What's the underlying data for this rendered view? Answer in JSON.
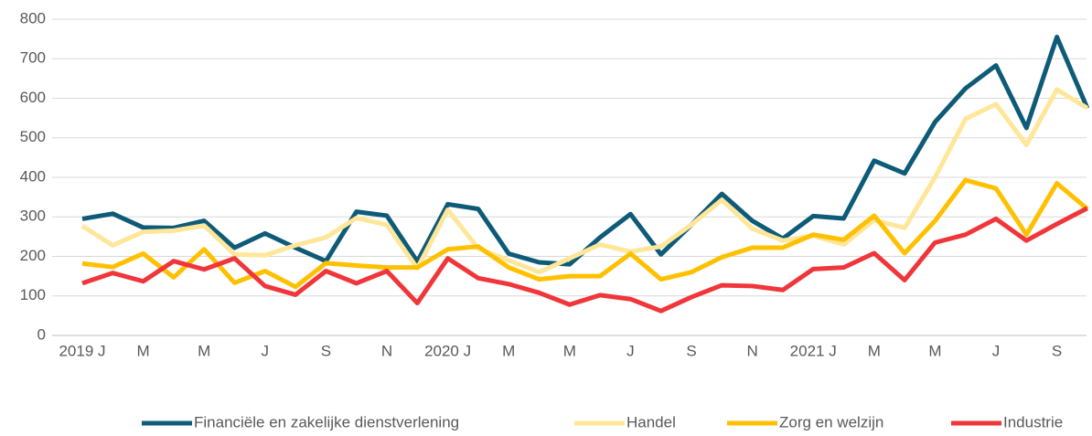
{
  "chart_data": {
    "type": "line",
    "categories": [
      "2019 J",
      null,
      "M",
      null,
      "M",
      null,
      "J",
      null,
      "S",
      null,
      "N",
      null,
      "2020 J",
      null,
      "M",
      null,
      "M",
      null,
      "J",
      null,
      "S",
      null,
      "N",
      null,
      "2021 J",
      null,
      "M",
      null,
      "M",
      null,
      "J",
      null,
      "S",
      null
    ],
    "series": [
      {
        "name": "Financiële en zakelijke dienstverlening",
        "color": "#0e5b78",
        "values": [
          295,
          308,
          273,
          272,
          290,
          222,
          258,
          222,
          188,
          313,
          303,
          187,
          332,
          320,
          207,
          185,
          180,
          248,
          307,
          205,
          280,
          358,
          290,
          245,
          302,
          296,
          442,
          410,
          540,
          625,
          683,
          525,
          755,
          575
        ]
      },
      {
        "name": "Handel",
        "color": "#ffe699",
        "values": [
          277,
          228,
          262,
          265,
          278,
          205,
          203,
          228,
          248,
          297,
          280,
          170,
          318,
          220,
          190,
          160,
          195,
          230,
          212,
          225,
          280,
          343,
          270,
          240,
          252,
          230,
          292,
          272,
          400,
          548,
          585,
          482,
          622,
          575
        ]
      },
      {
        "name": "Zorg en welzijn",
        "color": "#ffc000",
        "values": [
          182,
          173,
          207,
          147,
          218,
          133,
          163,
          123,
          183,
          177,
          172,
          172,
          218,
          225,
          172,
          142,
          150,
          150,
          207,
          142,
          160,
          198,
          222,
          222,
          255,
          242,
          303,
          208,
          290,
          393,
          372,
          255,
          385,
          320
        ]
      },
      {
        "name": "Industrie",
        "color": "#f0363a",
        "values": [
          132,
          158,
          137,
          188,
          167,
          195,
          125,
          103,
          163,
          132,
          163,
          82,
          195,
          145,
          130,
          108,
          78,
          102,
          92,
          62,
          97,
          127,
          125,
          115,
          168,
          172,
          208,
          140,
          235,
          255,
          295,
          240,
          282,
          322
        ]
      }
    ],
    "ylim": [
      0,
      800
    ],
    "yticks": [
      0,
      100,
      200,
      300,
      400,
      500,
      600,
      700,
      800
    ],
    "grid": true,
    "legend": "bottom"
  }
}
